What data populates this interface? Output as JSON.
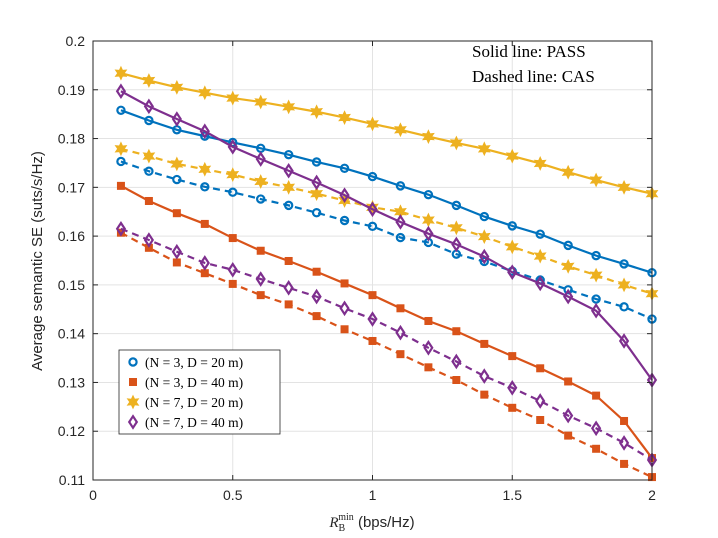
{
  "chart_data": {
    "type": "line",
    "xlabel_main": "R",
    "xlabel_sub": "B",
    "xlabel_sup": "min",
    "xlabel_unit": " (bps/Hz)",
    "ylabel": "Average semantic SE (suts/s/Hz)",
    "xlim": [
      0,
      2
    ],
    "ylim": [
      0.11,
      0.2
    ],
    "xticks": [
      "0",
      "0.5",
      "1",
      "1.5",
      "2"
    ],
    "yticks": [
      "0.11",
      "0.12",
      "0.13",
      "0.14",
      "0.15",
      "0.16",
      "0.17",
      "0.18",
      "0.19",
      "0.2"
    ],
    "annotations": [
      "Solid line: PASS",
      "Dashed line: CAS"
    ],
    "legend_position": "bottom-left",
    "x": [
      0.1,
      0.2,
      0.3,
      0.4,
      0.5,
      0.6,
      0.7,
      0.8,
      0.9,
      1.0,
      1.1,
      1.2,
      1.3,
      1.4,
      1.5,
      1.6,
      1.7,
      1.8,
      1.9,
      2.0
    ],
    "series": [
      {
        "label": "(N = 3, D = 20 m)",
        "color": "#0072BD",
        "marker": "circle",
        "pass": [
          0.1858,
          0.1837,
          0.1818,
          0.1805,
          0.1792,
          0.178,
          0.1767,
          0.1752,
          0.1739,
          0.1722,
          0.1703,
          0.1685,
          0.1663,
          0.164,
          0.1621,
          0.1604,
          0.1581,
          0.156,
          0.1543,
          0.1525
        ],
        "cas": [
          0.1753,
          0.1733,
          0.1716,
          0.1701,
          0.169,
          0.1676,
          0.1663,
          0.1648,
          0.1632,
          0.162,
          0.1597,
          0.1587,
          0.1563,
          0.1548,
          0.1528,
          0.151,
          0.149,
          0.1471,
          0.1455,
          0.143
        ]
      },
      {
        "label": "(N = 3, D = 40 m)",
        "color": "#D95319",
        "marker": "square",
        "pass": [
          0.1703,
          0.1672,
          0.1647,
          0.1625,
          0.1596,
          0.157,
          0.1549,
          0.1527,
          0.1503,
          0.1479,
          0.1452,
          0.1426,
          0.1405,
          0.1379,
          0.1354,
          0.1329,
          0.1302,
          0.1273,
          0.1221,
          0.1145
        ],
        "cas": [
          0.1607,
          0.1576,
          0.1546,
          0.1524,
          0.1502,
          0.1479,
          0.146,
          0.1436,
          0.1409,
          0.1385,
          0.1358,
          0.1331,
          0.1305,
          0.1275,
          0.1248,
          0.1223,
          0.1191,
          0.1164,
          0.1133,
          0.1106
        ]
      },
      {
        "label": "(N = 7, D = 20 m)",
        "color": "#EDB120",
        "marker": "hexagram",
        "pass": [
          0.1934,
          0.1919,
          0.1905,
          0.1894,
          0.1883,
          0.1875,
          0.1865,
          0.1855,
          0.1843,
          0.183,
          0.1818,
          0.1804,
          0.1791,
          0.1779,
          0.1764,
          0.1749,
          0.1731,
          0.1715,
          0.17,
          0.1687
        ],
        "cas": [
          0.1779,
          0.1764,
          0.1748,
          0.1737,
          0.1726,
          0.1712,
          0.17,
          0.1687,
          0.1673,
          0.1659,
          0.165,
          0.1633,
          0.1617,
          0.1599,
          0.1578,
          0.1559,
          0.1538,
          0.152,
          0.15,
          0.1482
        ]
      },
      {
        "label": "(N = 7, D = 40 m)",
        "color": "#7E2F8E",
        "marker": "diamond",
        "pass": [
          0.1897,
          0.1866,
          0.184,
          0.1815,
          0.1783,
          0.1758,
          0.1734,
          0.171,
          0.1684,
          0.1655,
          0.1629,
          0.1605,
          0.1583,
          0.1558,
          0.1526,
          0.1503,
          0.1476,
          0.1447,
          0.1385,
          0.1305
        ],
        "cas": [
          0.1615,
          0.1592,
          0.1568,
          0.1545,
          0.1531,
          0.1512,
          0.1494,
          0.1476,
          0.1452,
          0.143,
          0.1402,
          0.1371,
          0.1343,
          0.1313,
          0.1289,
          0.1262,
          0.1232,
          0.1206,
          0.1176,
          0.1141
        ]
      }
    ]
  }
}
